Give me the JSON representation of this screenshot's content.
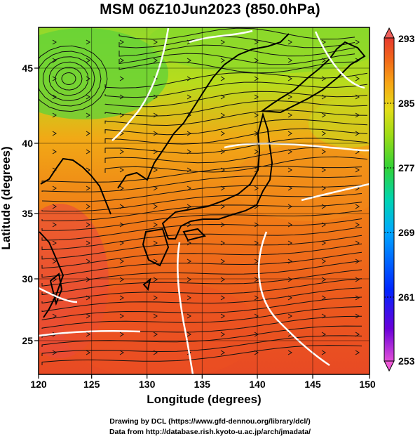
{
  "title": "MSM 06Z10Jun2023 (850.0hPa)",
  "xlabel": "Longitude (degrees)",
  "ylabel": "Latitude  (degrees)",
  "x_ticks": [
    "120",
    "125",
    "130",
    "135",
    "140",
    "145",
    "150"
  ],
  "y_ticks": [
    "45",
    "40",
    "35",
    "30",
    "25"
  ],
  "colorbar_ticks": [
    "293",
    "285",
    "277",
    "269",
    "261",
    "253"
  ],
  "credit_line1": "Drawing by DCL (https://www.gfd-dennou.org/library/dcl/)",
  "credit_line2": "Data from http://database.rish.kyoto-u.ac.jp/arch/jmadata/",
  "map": {
    "lon_range": [
      120,
      150
    ],
    "lat_range": [
      22.5,
      48
    ],
    "colorbar_range": [
      253,
      293
    ],
    "colorbar_colors": [
      "#e14fd8",
      "#6a00d8",
      "#0025ff",
      "#00a8ff",
      "#00d4b0",
      "#33d235",
      "#9fdc16",
      "#e4dd19",
      "#f7a515",
      "#f26a19",
      "#e73a2f",
      "#ee5f5b"
    ]
  }
}
